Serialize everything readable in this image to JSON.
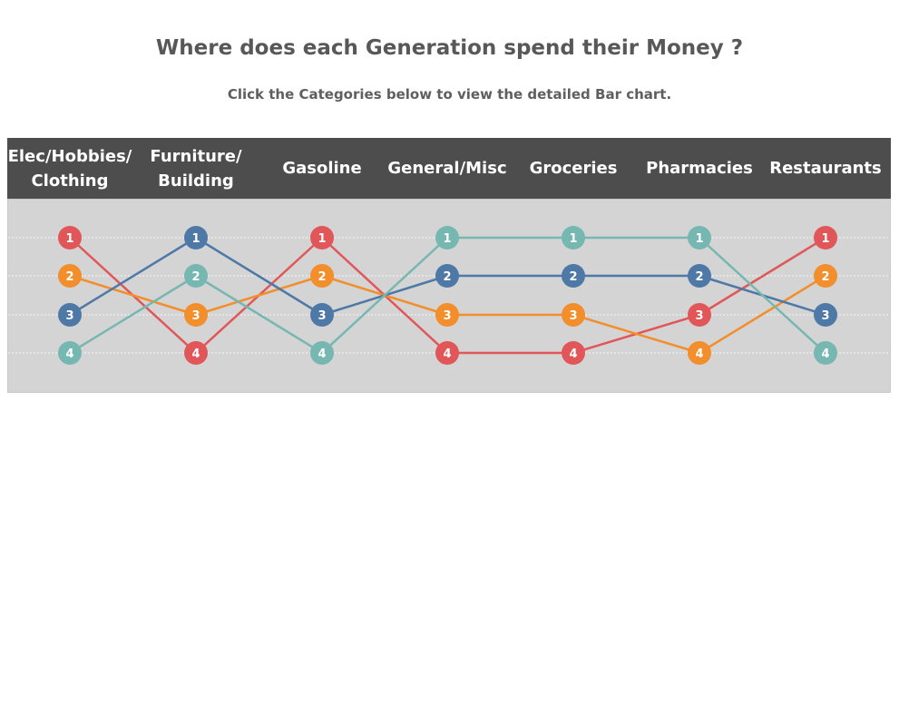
{
  "header": {
    "title": "Where does each Generation spend their Money ?",
    "subtitle": "Click the Categories below to view the detailed Bar chart."
  },
  "chart_data": {
    "type": "bump",
    "categories": [
      "Elec/Hobbies/\nClothing",
      "Furniture/\nBuilding",
      "Gasoline",
      "General/Misc",
      "Groceries",
      "Pharmacies",
      "Restaurants"
    ],
    "series": [
      {
        "color": "#e15759",
        "ranks": [
          1,
          4,
          1,
          4,
          4,
          3,
          1
        ]
      },
      {
        "color": "#f28e2b",
        "ranks": [
          2,
          3,
          2,
          3,
          3,
          4,
          2
        ]
      },
      {
        "color": "#4e79a7",
        "ranks": [
          3,
          1,
          3,
          2,
          2,
          2,
          3
        ]
      },
      {
        "color": "#76b7b2",
        "ranks": [
          4,
          2,
          4,
          1,
          1,
          1,
          4
        ]
      }
    ],
    "rank_range": [
      1,
      4
    ],
    "grid": true,
    "header_color": "#4d4d4d",
    "plot_background": "#d4d4d4"
  }
}
